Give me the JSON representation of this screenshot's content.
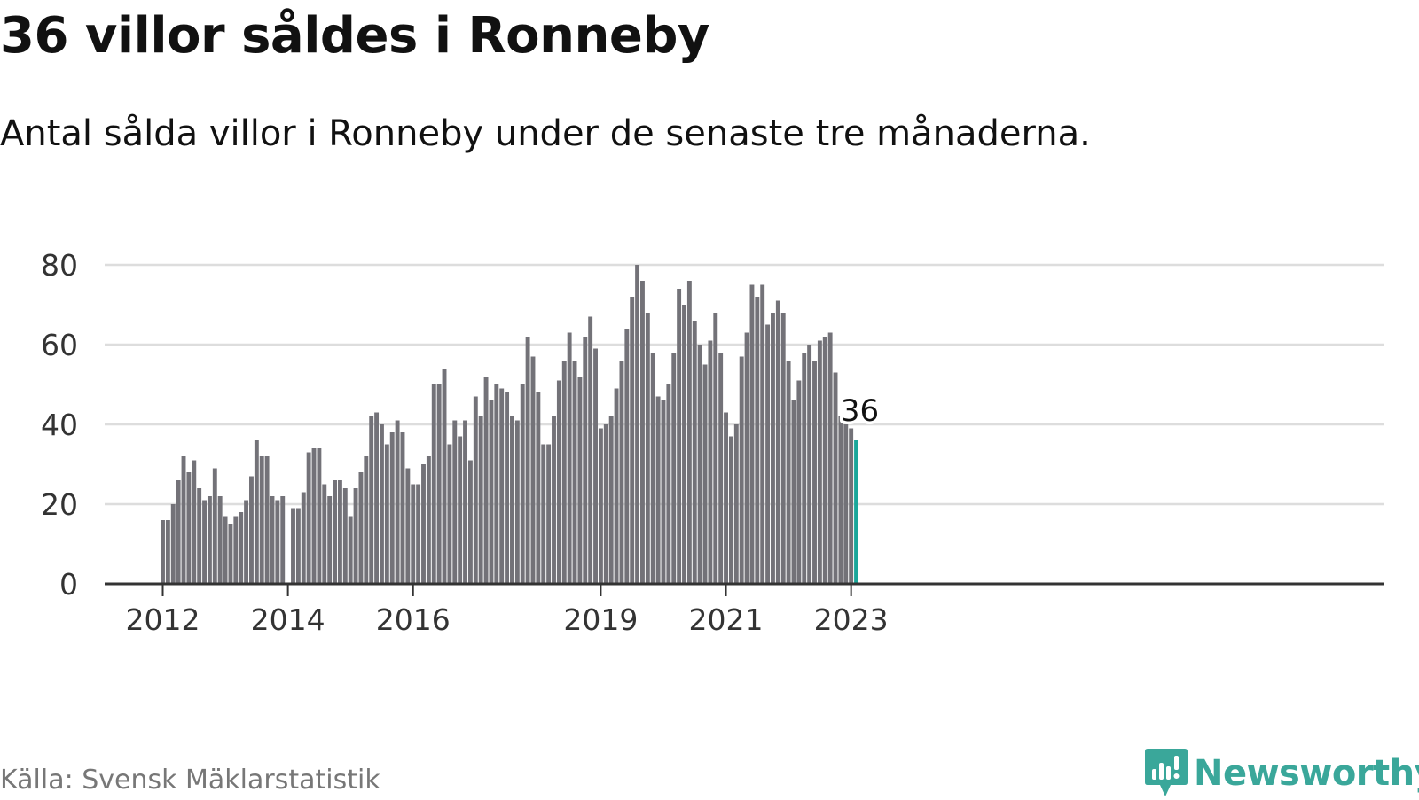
{
  "header": {
    "title": "36 villor såldes i Ronneby",
    "subtitle": "Antal sålda villor i Ronneby under de senaste tre månaderna."
  },
  "footer": {
    "source": "Källa: Svensk Mäklarstatistik",
    "brand": "Newsworthy",
    "brand_icon": "newsworthy-logo-icon"
  },
  "colors": {
    "bar": "#737278",
    "highlight": "#1aa79a",
    "grid": "#dddddd",
    "axis": "#333333",
    "brand": "#3aa79a"
  },
  "chart_data": {
    "type": "bar",
    "title": "",
    "xlabel": "",
    "ylabel": "",
    "ylim": [
      0,
      80
    ],
    "yticks": [
      0,
      20,
      40,
      60,
      80
    ],
    "grid": true,
    "x_tick_labels": [
      {
        "label": "2012",
        "date": "2012-01"
      },
      {
        "label": "2014",
        "date": "2014-01"
      },
      {
        "label": "2016",
        "date": "2016-01"
      },
      {
        "label": "2019",
        "date": "2019-01"
      },
      {
        "label": "2021",
        "date": "2021-01"
      },
      {
        "label": "2023",
        "date": "2023-01"
      }
    ],
    "start_month": "2012-01",
    "end_month": "2023-02",
    "values": [
      16,
      16,
      20,
      26,
      32,
      28,
      31,
      24,
      21,
      22,
      29,
      22,
      17,
      15,
      17,
      18,
      21,
      27,
      36,
      32,
      32,
      22,
      21,
      22,
      null,
      19,
      19,
      23,
      33,
      34,
      34,
      25,
      22,
      26,
      26,
      24,
      17,
      24,
      28,
      32,
      42,
      43,
      40,
      35,
      38,
      41,
      38,
      29,
      25,
      25,
      30,
      32,
      50,
      50,
      54,
      35,
      41,
      37,
      41,
      31,
      47,
      42,
      52,
      46,
      50,
      49,
      48,
      42,
      41,
      50,
      62,
      57,
      48,
      35,
      35,
      42,
      51,
      56,
      63,
      56,
      52,
      62,
      67,
      59,
      39,
      40,
      42,
      49,
      56,
      64,
      72,
      80,
      76,
      68,
      58,
      47,
      46,
      50,
      58,
      74,
      70,
      76,
      66,
      60,
      55,
      61,
      68,
      58,
      43,
      37,
      40,
      57,
      63,
      75,
      72,
      75,
      65,
      68,
      71,
      68,
      56,
      46,
      51,
      58,
      60,
      56,
      61,
      62,
      63,
      53,
      42,
      40,
      39,
      36
    ],
    "highlight": {
      "date": "2023-02",
      "value": 36,
      "label": "36"
    }
  }
}
